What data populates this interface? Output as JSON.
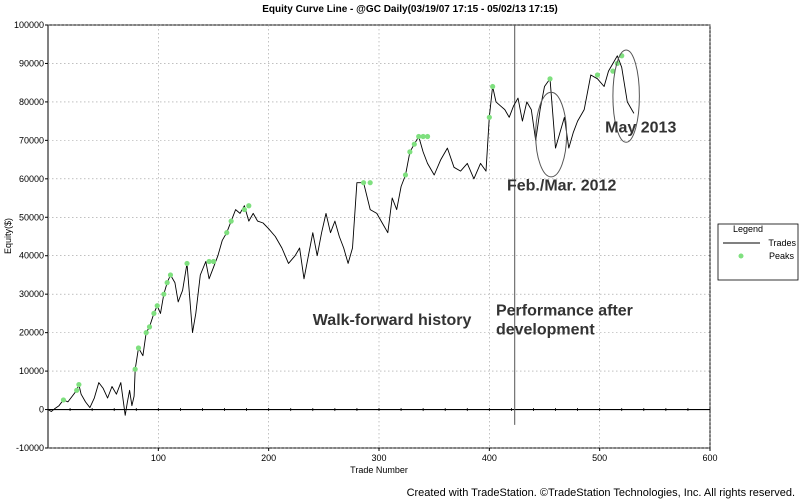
{
  "chart_data": {
    "type": "line",
    "title": "Equity Curve Line - @GC Daily(03/19/07 17:15 - 05/02/13 17:15)",
    "xlabel": "Trade Number",
    "ylabel": "Equity($)",
    "xlim": [
      0,
      600
    ],
    "ylim": [
      -10000,
      100000
    ],
    "x_ticks": [
      100,
      200,
      300,
      400,
      500,
      600
    ],
    "y_ticks": [
      -10000,
      0,
      10000,
      20000,
      30000,
      40000,
      50000,
      60000,
      70000,
      80000,
      90000,
      100000
    ],
    "x_tick_labels": [
      "100",
      "200",
      "300",
      "400",
      "500",
      "600"
    ],
    "y_tick_labels": [
      "-10000",
      "0",
      "10000",
      "20000",
      "30000",
      "40000",
      "50000",
      "60000",
      "70000",
      "80000",
      "90000",
      "100000"
    ],
    "grid": true,
    "legend": {
      "title": "Legend",
      "placement": "right",
      "entries": [
        "Trades",
        "Peaks"
      ]
    },
    "colors": {
      "trades": "#000000",
      "peaks": "#7fe07f",
      "grid": "#9a9a9a"
    },
    "series": [
      {
        "name": "Trades",
        "type": "line",
        "x": [
          0,
          3,
          6,
          10,
          14,
          18,
          22,
          26,
          28,
          30,
          34,
          38,
          42,
          46,
          50,
          54,
          58,
          62,
          66,
          70,
          72,
          74,
          76,
          78,
          79,
          82,
          86,
          89,
          92,
          96,
          99,
          102,
          105,
          108,
          111,
          115,
          118,
          122,
          126,
          131,
          134,
          138,
          143,
          146,
          150,
          154,
          158,
          162,
          166,
          170,
          174,
          178,
          182,
          186,
          190,
          195,
          200,
          206,
          212,
          218,
          224,
          228,
          232,
          236,
          240,
          244,
          248,
          252,
          256,
          260,
          264,
          268,
          272,
          276,
          280,
          286,
          292,
          298,
          304,
          308,
          312,
          316,
          320,
          324,
          328,
          332,
          336,
          340,
          344,
          350,
          356,
          362,
          368,
          374,
          380,
          386,
          392,
          397,
          400,
          403,
          406,
          410,
          414,
          418,
          422,
          426,
          430,
          434,
          438,
          442,
          446,
          450,
          455,
          460,
          464,
          468,
          472,
          476,
          480,
          486,
          492,
          498,
          504,
          508,
          512,
          516,
          520,
          525,
          531
        ],
        "y": [
          0,
          -500,
          200,
          1000,
          2500,
          2000,
          3500,
          5000,
          6500,
          4000,
          2000,
          500,
          3000,
          7000,
          5500,
          3000,
          6000,
          4000,
          7000,
          -1500,
          2000,
          5000,
          1000,
          3500,
          10500,
          16000,
          14000,
          20000,
          21500,
          25000,
          27000,
          25000,
          30000,
          33000,
          35000,
          33000,
          28000,
          31000,
          38000,
          20000,
          25000,
          35000,
          38500,
          34000,
          37000,
          40000,
          44000,
          46000,
          49000,
          52000,
          51000,
          53000,
          49000,
          51000,
          49000,
          48500,
          47000,
          45000,
          42000,
          38000,
          40000,
          42000,
          34000,
          40000,
          46000,
          40000,
          46000,
          51000,
          46000,
          49000,
          45000,
          42000,
          38000,
          42000,
          59000,
          59000,
          52000,
          51000,
          48000,
          46000,
          55000,
          52000,
          58000,
          61000,
          67000,
          69000,
          71000,
          67000,
          64000,
          61000,
          65000,
          68000,
          63000,
          62000,
          64000,
          60000,
          64000,
          62000,
          76000,
          84000,
          80000,
          79000,
          78000,
          76000,
          79000,
          81000,
          75000,
          80000,
          78000,
          70000,
          78000,
          84000,
          86000,
          68000,
          72000,
          76000,
          68000,
          72000,
          75000,
          78000,
          87000,
          86000,
          84000,
          88000,
          90000,
          92000,
          89000,
          80000,
          77000
        ]
      },
      {
        "name": "Peaks",
        "type": "scatter",
        "x": [
          14,
          26,
          28,
          79,
          82,
          89,
          92,
          96,
          99,
          105,
          108,
          111,
          126,
          146,
          150,
          162,
          166,
          178,
          182,
          286,
          292,
          324,
          328,
          332,
          336,
          340,
          344,
          400,
          403,
          455,
          498,
          512,
          516,
          520
        ],
        "y": [
          2500,
          5000,
          6500,
          10500,
          16000,
          20000,
          21500,
          25000,
          27000,
          30000,
          33000,
          35000,
          38000,
          38500,
          38500,
          46000,
          49000,
          52000,
          53000,
          59000,
          59000,
          61000,
          67000,
          69000,
          71000,
          71000,
          71000,
          76000,
          84000,
          86000,
          87000,
          88000,
          90000,
          92000
        ]
      }
    ],
    "annotations": [
      {
        "text": "Walk-forward history",
        "x": 240,
        "y": 22000
      },
      {
        "text": "Performance after",
        "x": 406,
        "y": 24500
      },
      {
        "text": "development",
        "x": 406,
        "y": 19500
      },
      {
        "text": "Feb./Mar. 2012",
        "x": 416,
        "y": 57000
      },
      {
        "text": "May 2013",
        "x": 505,
        "y": 72000
      }
    ],
    "reference_lines": [
      {
        "orientation": "vertical",
        "x": 423,
        "y_range": [
          -4000,
          100000
        ]
      }
    ],
    "ellipses": [
      {
        "center": [
          456,
          71500
        ],
        "radius_x": 14,
        "radius_y": 11000
      },
      {
        "center": [
          524,
          81500
        ],
        "radius_x": 12,
        "radius_y": 12000
      }
    ]
  },
  "footer": "Created with TradeStation. ©TradeStation Technologies, Inc. All rights reserved."
}
